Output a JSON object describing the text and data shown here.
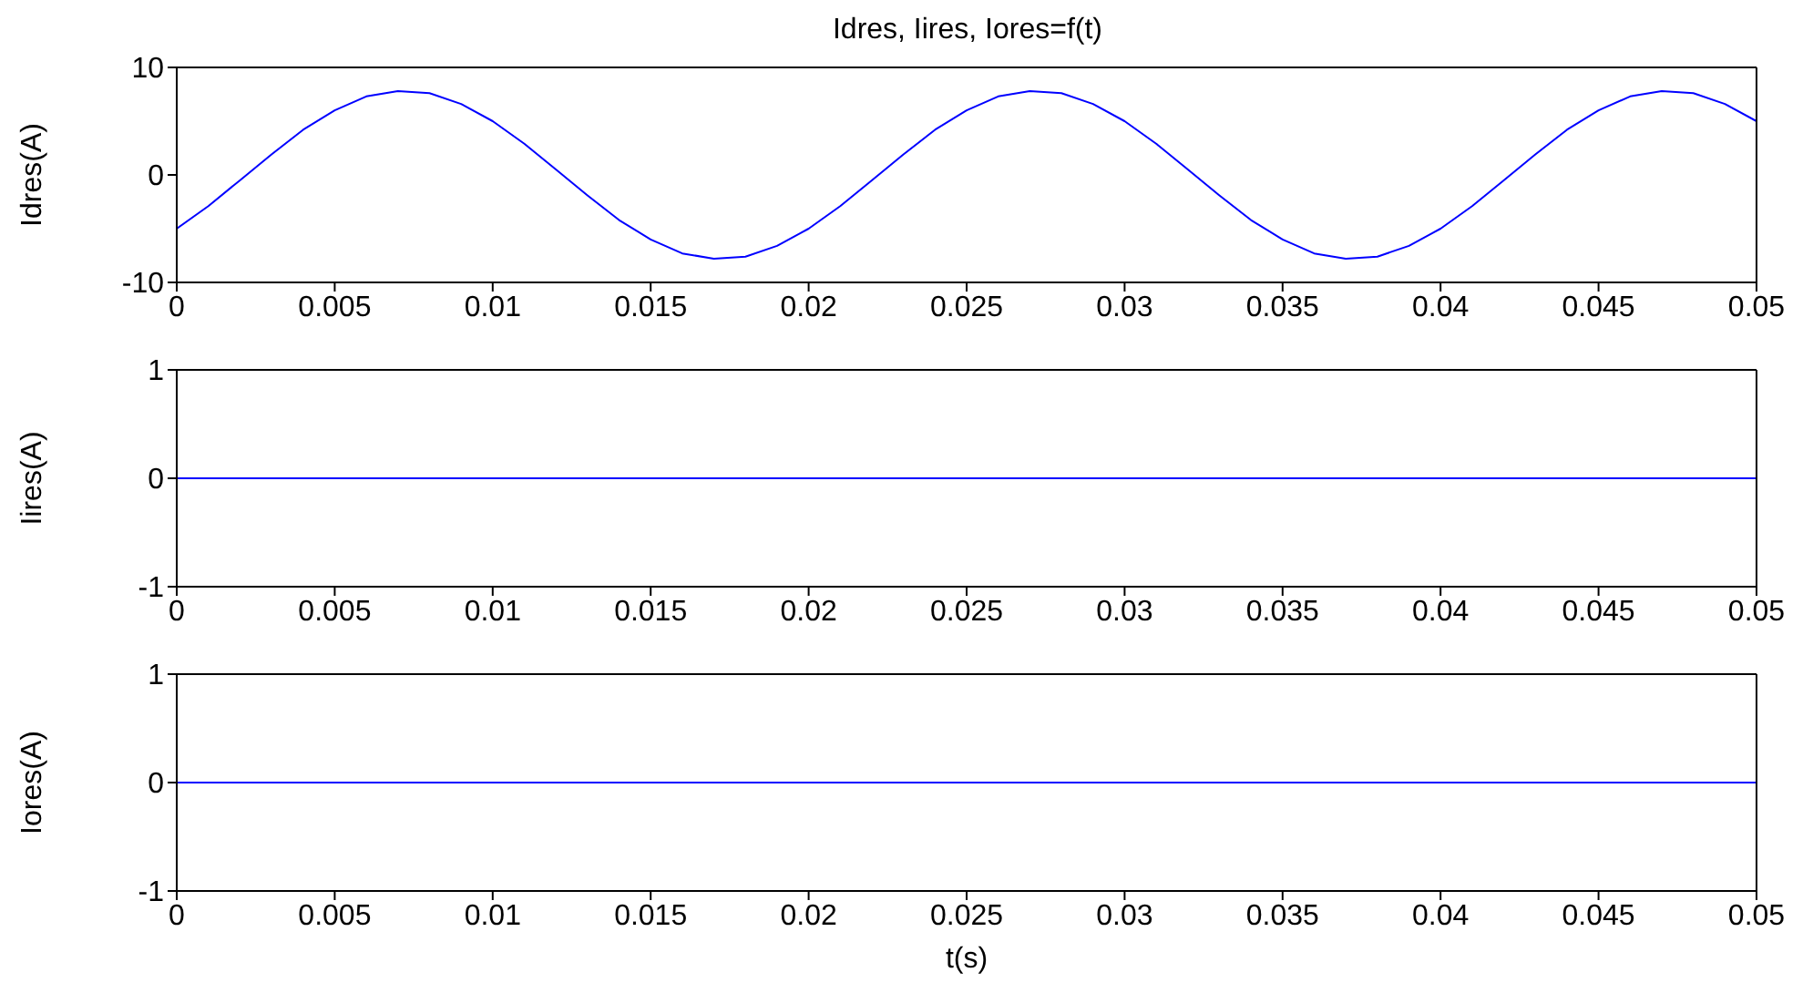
{
  "chart_data": [
    {
      "type": "line",
      "title": "Idres, Iires, Iores=f(t)",
      "ylabel": "Idres(A)",
      "x": [
        0,
        0.001,
        0.002,
        0.003,
        0.004,
        0.005,
        0.006,
        0.007,
        0.008,
        0.009,
        0.01,
        0.011,
        0.012,
        0.013,
        0.014,
        0.015,
        0.016,
        0.017,
        0.018,
        0.019,
        0.02,
        0.021,
        0.022,
        0.023,
        0.024,
        0.025,
        0.026,
        0.027,
        0.028,
        0.029,
        0.03,
        0.031,
        0.032,
        0.033,
        0.034,
        0.035,
        0.036,
        0.037,
        0.038,
        0.039,
        0.04,
        0.041,
        0.042,
        0.043,
        0.044,
        0.045,
        0.046,
        0.047,
        0.048,
        0.049,
        0.05
      ],
      "series": [
        {
          "color": "#0000ff",
          "values": [
            -5.0,
            -2.9,
            -0.5,
            1.9,
            4.2,
            6.0,
            7.3,
            7.8,
            7.6,
            6.6,
            5.0,
            2.9,
            0.5,
            -1.9,
            -4.2,
            -6.0,
            -7.3,
            -7.8,
            -7.6,
            -6.6,
            -5.0,
            -2.9,
            -0.5,
            1.9,
            4.2,
            6.0,
            7.3,
            7.8,
            7.6,
            6.6,
            5.0,
            2.9,
            0.5,
            -1.9,
            -4.2,
            -6.0,
            -7.3,
            -7.8,
            -7.6,
            -6.6,
            -5.0,
            -2.9,
            -0.5,
            1.9,
            4.2,
            6.0,
            7.3,
            7.8,
            7.6,
            6.6,
            5.0
          ]
        }
      ],
      "xlim": [
        0,
        0.05
      ],
      "xticks": [
        0,
        0.005,
        0.01,
        0.015,
        0.02,
        0.025,
        0.03,
        0.035,
        0.04,
        0.045,
        0.05
      ],
      "ylim": [
        -10,
        10
      ],
      "yticks": [
        -10,
        0,
        10
      ],
      "grid": false,
      "legend": false
    },
    {
      "type": "line",
      "ylabel": "Iires(A)",
      "x": [
        0,
        0.05
      ],
      "series": [
        {
          "color": "#0000ff",
          "values": [
            0,
            0
          ]
        }
      ],
      "xlim": [
        0,
        0.05
      ],
      "xticks": [
        0,
        0.005,
        0.01,
        0.015,
        0.02,
        0.025,
        0.03,
        0.035,
        0.04,
        0.045,
        0.05
      ],
      "ylim": [
        -1,
        1
      ],
      "yticks": [
        -1,
        0,
        1
      ],
      "grid": false,
      "legend": false
    },
    {
      "type": "line",
      "ylabel": "Iores(A)",
      "xlabel": "t(s)",
      "x": [
        0,
        0.05
      ],
      "series": [
        {
          "color": "#0000ff",
          "values": [
            0,
            0
          ]
        }
      ],
      "xlim": [
        0,
        0.05
      ],
      "xticks": [
        0,
        0.005,
        0.01,
        0.015,
        0.02,
        0.025,
        0.03,
        0.035,
        0.04,
        0.045,
        0.05
      ],
      "ylim": [
        -1,
        1
      ],
      "yticks": [
        -1,
        0,
        1
      ],
      "grid": false,
      "legend": false
    }
  ]
}
